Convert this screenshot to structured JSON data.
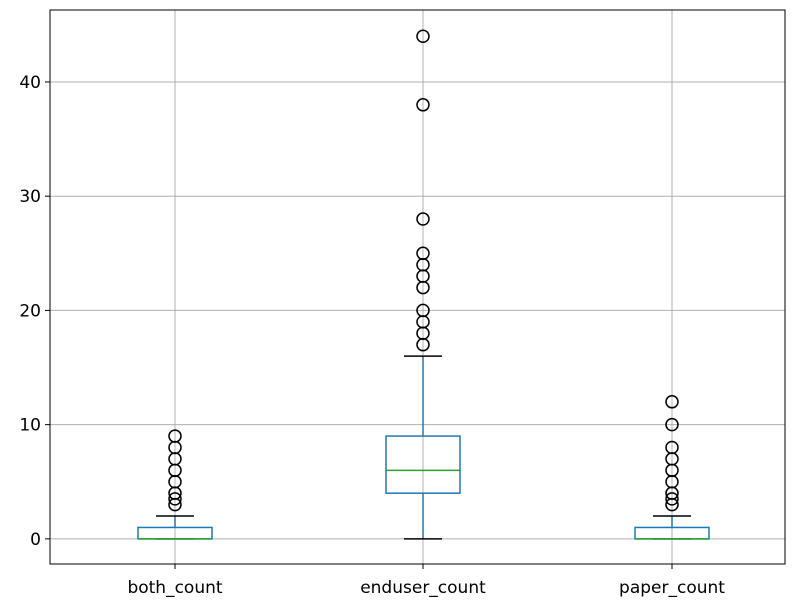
{
  "chart_data": {
    "type": "box",
    "title": "",
    "xlabel": "",
    "ylabel": "",
    "ylim": [
      -2.2,
      46.3
    ],
    "yticks": [
      0,
      10,
      20,
      30,
      40
    ],
    "grid": true,
    "colors": {
      "box": "#1f77b4",
      "median": "#2ca02c",
      "cap": "#000000",
      "grid": "#b0b0b0",
      "flier": "#000000"
    },
    "categories": [
      "both_count",
      "enduser_count",
      "paper_count"
    ],
    "boxes": [
      {
        "label": "both_count",
        "whisker_low": 0,
        "q1": 0,
        "median": 0,
        "q3": 1,
        "whisker_high": 2,
        "outliers": [
          3,
          3.5,
          4,
          5,
          6,
          7,
          8,
          9
        ]
      },
      {
        "label": "enduser_count",
        "whisker_low": 0,
        "q1": 4,
        "median": 6,
        "q3": 9,
        "whisker_high": 16,
        "outliers": [
          17,
          18,
          19,
          20,
          22,
          23,
          24,
          25,
          28,
          38,
          44
        ]
      },
      {
        "label": "paper_count",
        "whisker_low": 0,
        "q1": 0,
        "median": 0,
        "q3": 1,
        "whisker_high": 2,
        "outliers": [
          3,
          3.5,
          4,
          5,
          6,
          7,
          8,
          10,
          12
        ]
      }
    ]
  }
}
